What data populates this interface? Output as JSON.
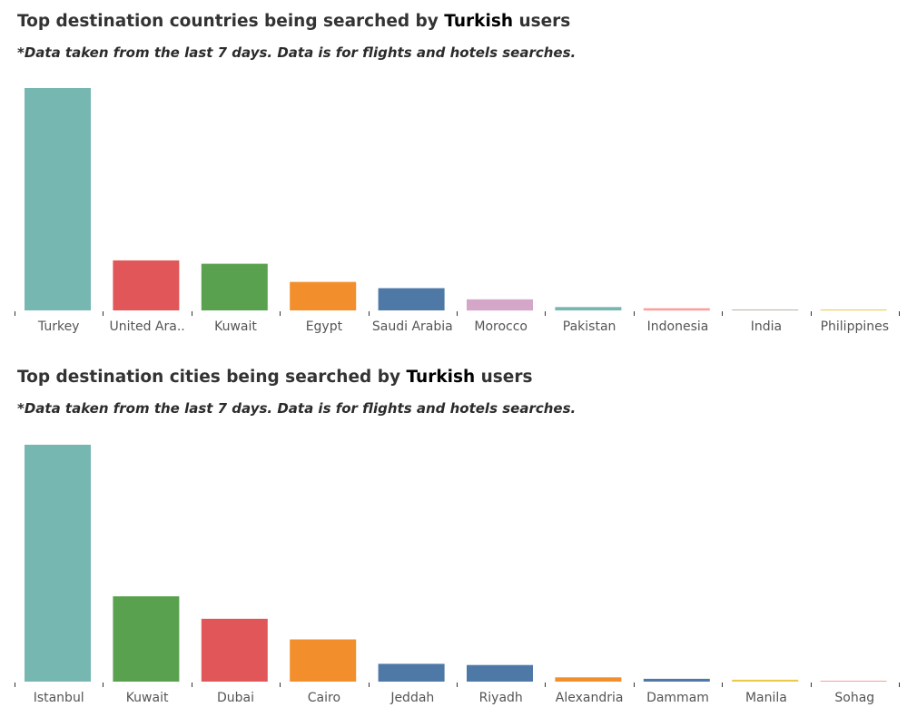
{
  "colors": {
    "teal": "#76B7B2",
    "red": "#E15759",
    "green": "#59A14F",
    "orange": "#F28E2B",
    "blue": "#4E79A7",
    "pink": "#D4A6C8",
    "light_pink": "#FF9D9A",
    "grey": "#BAB0AC",
    "yellow": "#EDC948"
  },
  "chart_data": [
    {
      "type": "bar",
      "title_prefix": "Top destination countries being searched by ",
      "title_highlight": "Turkish",
      "title_suffix": " users",
      "subtitle": "*Data taken from the last 7 days. Data is for flights and hotels searches.",
      "xlabel": "",
      "ylabel": "",
      "ylim": [
        0,
        100
      ],
      "grid": false,
      "categories": [
        "Turkey",
        "United Ara..",
        "Kuwait",
        "Egypt",
        "Saudi Arabia",
        "Morocco",
        "Pakistan",
        "Indonesia",
        "India",
        "Philippines"
      ],
      "values": [
        100,
        22.5,
        21,
        12.8,
        10,
        5,
        1.5,
        1,
        0.4,
        0.4
      ],
      "bar_colors": [
        "#76B7B2",
        "#E15759",
        "#59A14F",
        "#F28E2B",
        "#4E79A7",
        "#D4A6C8",
        "#76B7B2",
        "#FF9D9A",
        "#BAB0AC",
        "#EDC948"
      ]
    },
    {
      "type": "bar",
      "title_prefix": "Top destination cities being searched by ",
      "title_highlight": "Turkish",
      "title_suffix": " users",
      "subtitle": "*Data taken from the last 7 days. Data is for flights and hotels searches.",
      "xlabel": "",
      "ylabel": "",
      "ylim": [
        0,
        100
      ],
      "grid": false,
      "categories": [
        "Istanbul",
        "Kuwait",
        "Dubai",
        "Cairo",
        "Jeddah",
        "Riyadh",
        "Alexandria",
        "Dammam",
        "Manila",
        "Sohag"
      ],
      "values": [
        100,
        36,
        26.5,
        17.8,
        7.5,
        7,
        1.8,
        1.2,
        0.8,
        0.2
      ],
      "bar_colors": [
        "#76B7B2",
        "#59A14F",
        "#E15759",
        "#F28E2B",
        "#4E79A7",
        "#4E79A7",
        "#F28E2B",
        "#4E79A7",
        "#EDC948",
        "#FF9D9A"
      ]
    }
  ]
}
